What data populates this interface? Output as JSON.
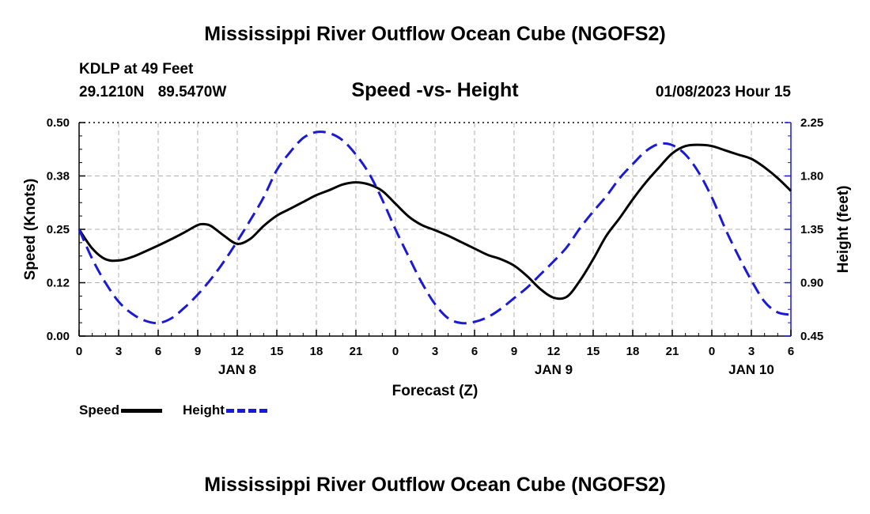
{
  "title": "Mississippi River Outflow Ocean Cube (NGOFS2)",
  "station": {
    "name": "KDLP at 49 Feet",
    "lat": "29.1210N",
    "lon": "89.5470W"
  },
  "subtitle": "Speed -vs- Height",
  "timestamp": "01/08/2023 Hour 15",
  "legend": {
    "speed": "Speed",
    "height": "Height"
  },
  "colors": {
    "speed": "#000000",
    "height": "#1a1ad6",
    "grid": "#b0b0b0"
  },
  "chart_data": {
    "type": "line",
    "xlabel": "Forecast (Z)",
    "ylabel_left": "Speed (Knots)",
    "ylabel_right": "Height (feet)",
    "x_range": [
      0,
      54
    ],
    "x_ticks": [
      0,
      3,
      6,
      9,
      12,
      15,
      18,
      21,
      24,
      27,
      30,
      33,
      36,
      39,
      42,
      45,
      48,
      51,
      54
    ],
    "x_tick_labels": [
      "0",
      "3",
      "6",
      "9",
      "12",
      "15",
      "18",
      "21",
      "0",
      "3",
      "6",
      "9",
      "12",
      "15",
      "18",
      "21",
      "0",
      "3",
      "6"
    ],
    "date_labels": [
      {
        "label": "JAN 8",
        "x": 12
      },
      {
        "label": "JAN 9",
        "x": 36
      },
      {
        "label": "JAN 10",
        "x": 51
      }
    ],
    "left_axis": {
      "range": [
        0,
        0.5
      ],
      "ticks": [
        0.0,
        0.125,
        0.25,
        0.375,
        0.5
      ],
      "tick_labels": [
        "0.00",
        "0.12",
        "0.25",
        "0.38",
        "0.50"
      ]
    },
    "right_axis": {
      "range": [
        0.45,
        2.25
      ],
      "ticks": [
        0.45,
        0.9,
        1.35,
        1.8,
        2.25
      ],
      "tick_labels": [
        "0.45",
        "0.90",
        "1.35",
        "1.80",
        "2.25"
      ]
    },
    "grid": true,
    "series": [
      {
        "name": "Speed",
        "axis": "left",
        "style": "solid",
        "x": [
          0,
          1,
          2,
          3,
          4,
          5,
          6,
          7,
          8,
          9,
          9.5,
          10,
          11,
          12,
          13,
          14,
          15,
          16,
          17,
          18,
          19,
          20,
          21,
          22,
          23,
          24,
          25,
          26,
          27,
          28,
          29,
          30,
          31,
          32,
          33,
          34,
          35,
          36,
          37,
          38,
          39,
          40,
          41,
          42,
          43,
          44,
          45,
          46,
          47,
          48,
          49,
          50,
          51,
          52,
          53,
          54
        ],
        "values": [
          0.25,
          0.205,
          0.18,
          0.177,
          0.185,
          0.198,
          0.212,
          0.227,
          0.243,
          0.26,
          0.262,
          0.258,
          0.235,
          0.216,
          0.228,
          0.258,
          0.282,
          0.298,
          0.314,
          0.33,
          0.342,
          0.355,
          0.36,
          0.355,
          0.34,
          0.31,
          0.28,
          0.26,
          0.248,
          0.235,
          0.22,
          0.205,
          0.19,
          0.18,
          0.165,
          0.14,
          0.11,
          0.09,
          0.092,
          0.13,
          0.18,
          0.235,
          0.276,
          0.32,
          0.36,
          0.395,
          0.428,
          0.445,
          0.448,
          0.445,
          0.435,
          0.425,
          0.415,
          0.395,
          0.37,
          0.34
        ]
      },
      {
        "name": "Height",
        "axis": "right",
        "style": "dashed",
        "x": [
          0,
          1,
          2,
          3,
          4,
          5,
          6,
          7,
          8,
          9,
          10,
          11,
          12,
          13,
          14,
          15,
          16,
          17,
          18,
          19,
          20,
          21,
          22,
          23,
          24,
          25,
          26,
          27,
          28,
          29,
          30,
          31,
          32,
          33,
          34,
          35,
          36,
          37,
          38,
          39,
          40,
          41,
          42,
          43,
          44,
          45,
          46,
          47,
          48,
          49,
          50,
          51,
          52,
          53,
          54
        ],
        "values": [
          1.35,
          1.1,
          0.9,
          0.74,
          0.64,
          0.58,
          0.56,
          0.6,
          0.69,
          0.8,
          0.93,
          1.08,
          1.25,
          1.43,
          1.62,
          1.85,
          2.0,
          2.12,
          2.17,
          2.16,
          2.1,
          1.98,
          1.82,
          1.6,
          1.35,
          1.12,
          0.9,
          0.72,
          0.6,
          0.56,
          0.57,
          0.61,
          0.68,
          0.77,
          0.86,
          0.97,
          1.08,
          1.2,
          1.36,
          1.5,
          1.63,
          1.78,
          1.9,
          2.01,
          2.07,
          2.06,
          1.98,
          1.83,
          1.62,
          1.36,
          1.13,
          0.92,
          0.74,
          0.65,
          0.63
        ]
      }
    ]
  }
}
